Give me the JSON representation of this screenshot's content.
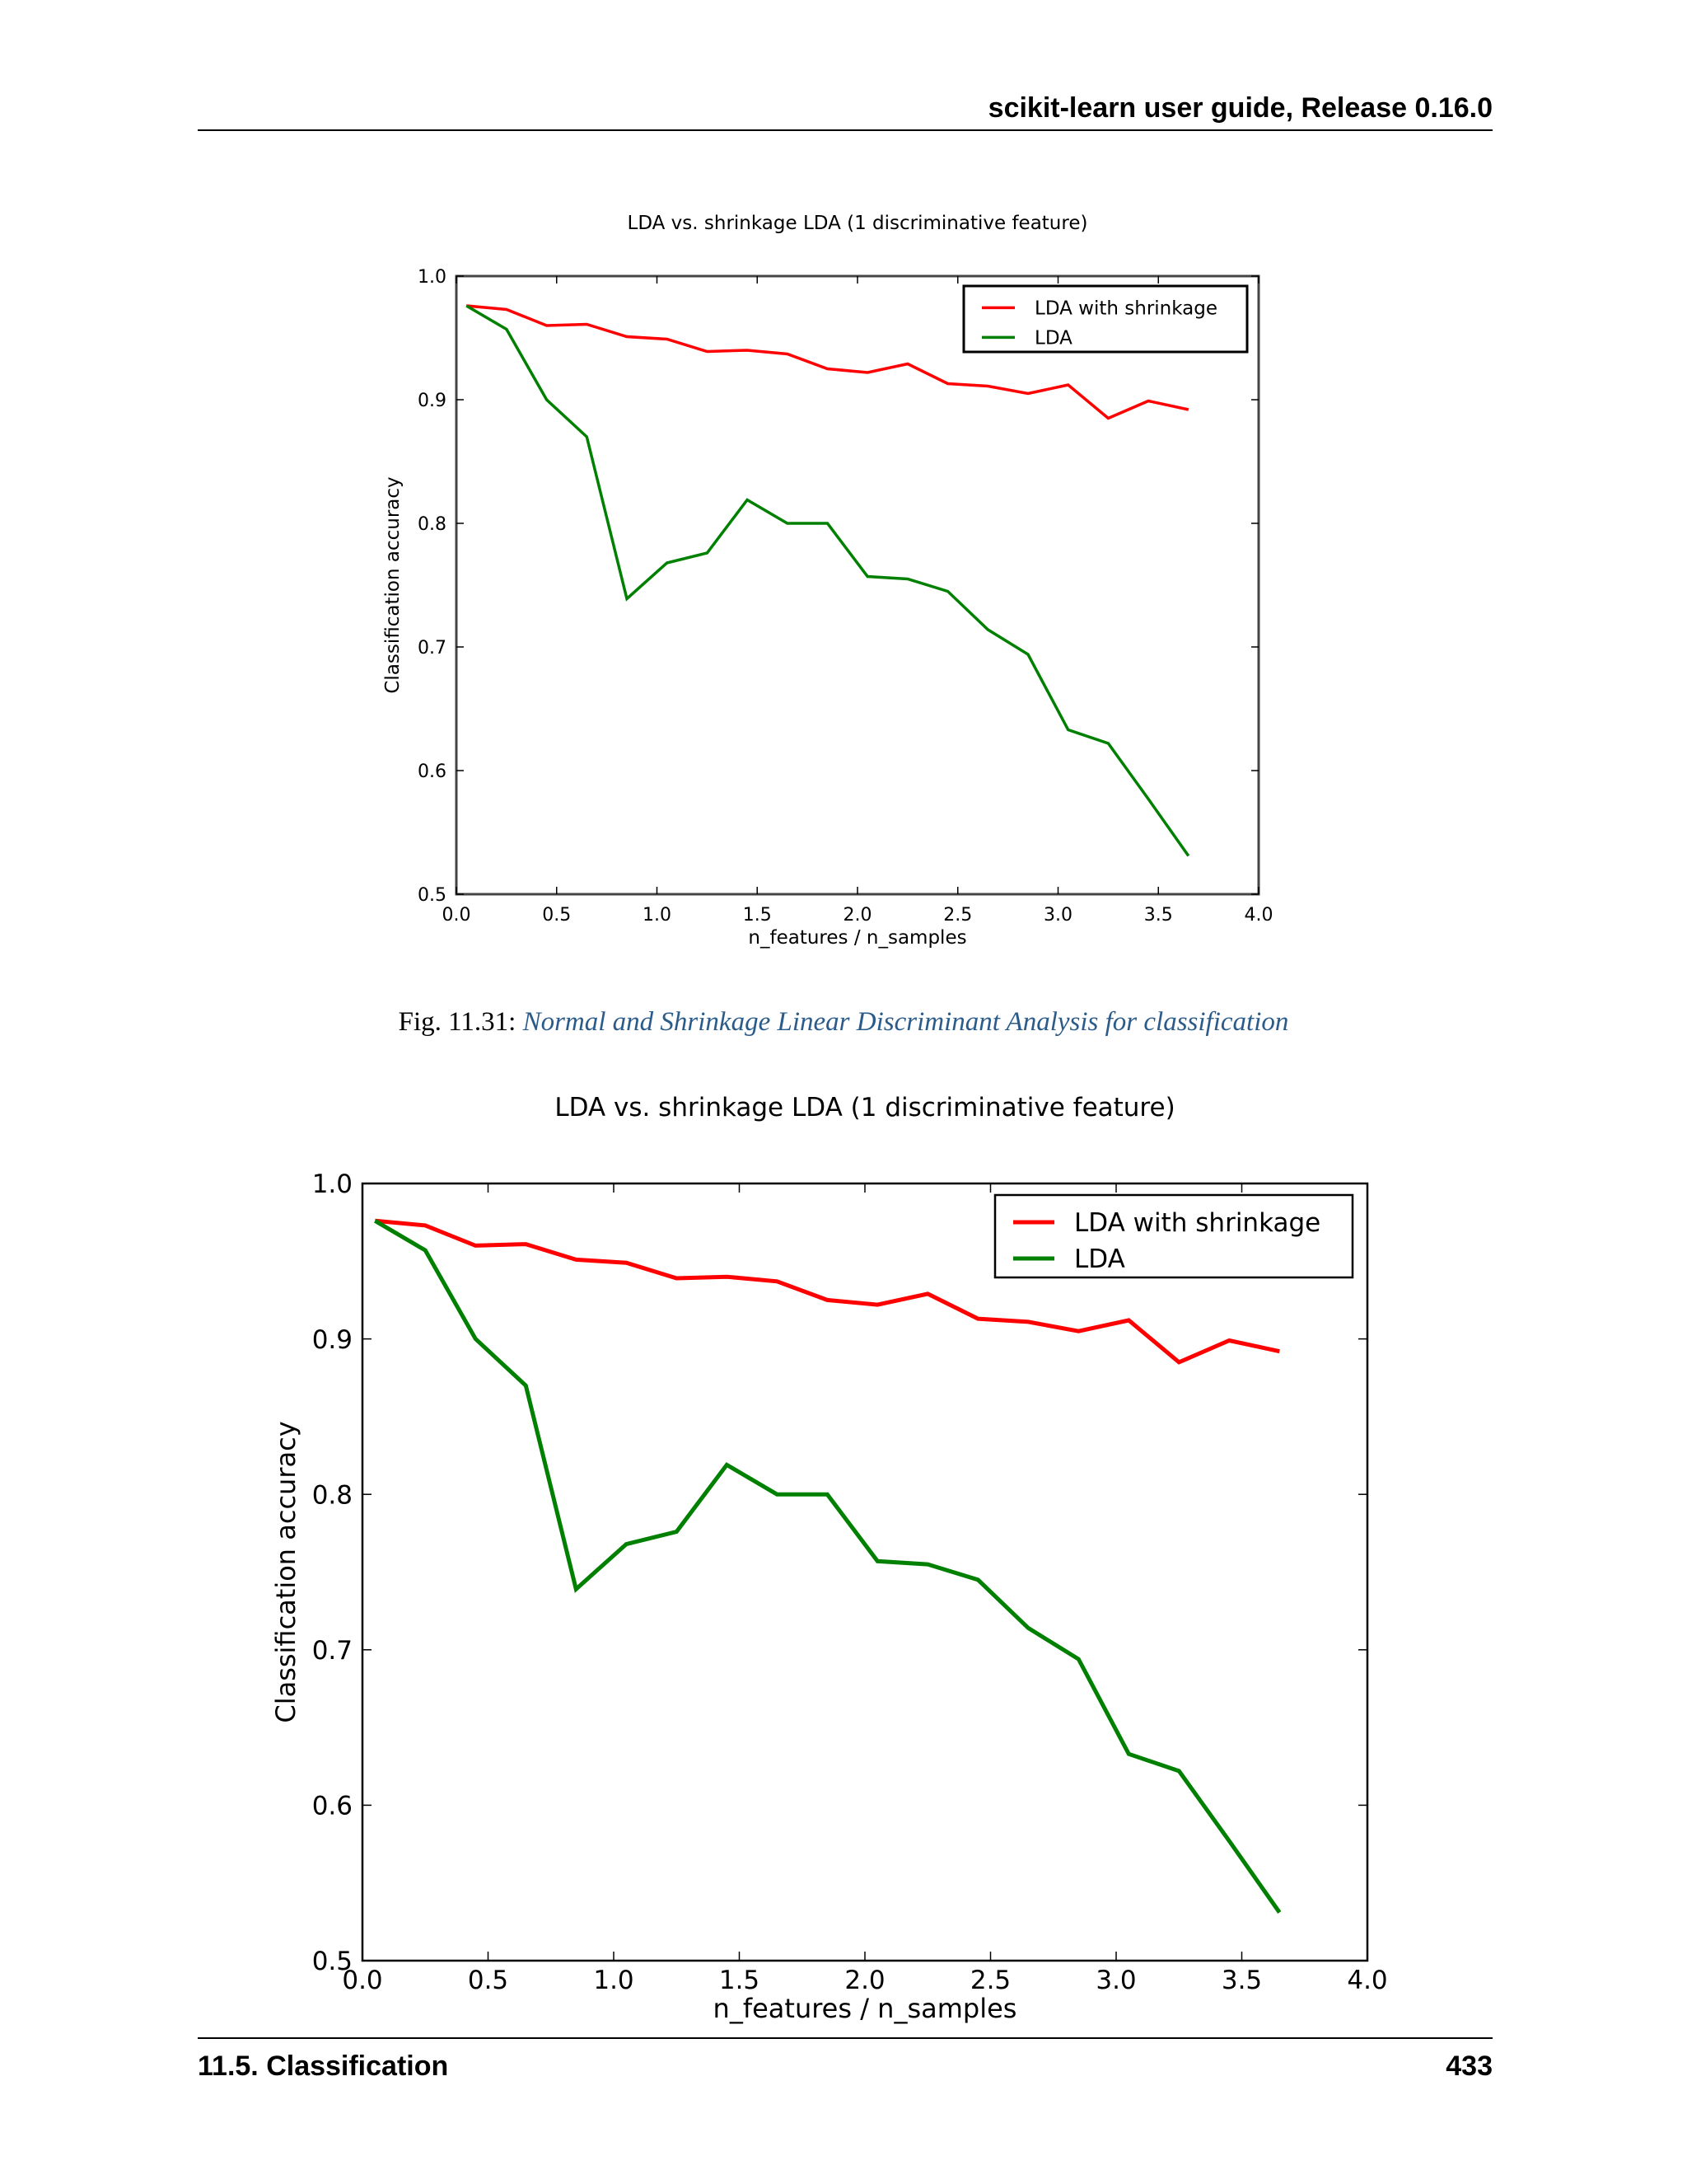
{
  "header": {
    "title": "scikit-learn user guide, Release 0.16.0"
  },
  "figure_caption": {
    "label": "Fig. 11.31:",
    "link_text": "Normal and Shrinkage Linear Discriminant Analysis for classification"
  },
  "footer": {
    "section": "11.5. Classification",
    "page_number": "433"
  },
  "colors": {
    "shrinkage": "#ff0000",
    "lda": "#008000",
    "link": "#2a5b8a"
  },
  "chart_data": [
    {
      "type": "line",
      "title": "LDA vs. shrinkage LDA (1 discriminative feature)",
      "xlabel": "n_features / n_samples",
      "ylabel": "Classification accuracy",
      "xlim": [
        0.0,
        4.0
      ],
      "ylim": [
        0.5,
        1.0
      ],
      "xticks": [
        "0.0",
        "0.5",
        "1.0",
        "1.5",
        "2.0",
        "2.5",
        "3.0",
        "3.5",
        "4.0"
      ],
      "yticks": [
        "0.5",
        "0.6",
        "0.7",
        "0.8",
        "0.9",
        "1.0"
      ],
      "legend_position": "top-right",
      "x": [
        0.05,
        0.25,
        0.45,
        0.65,
        0.85,
        1.05,
        1.25,
        1.45,
        1.65,
        1.85,
        2.05,
        2.25,
        2.45,
        2.65,
        2.85,
        3.05,
        3.25,
        3.45,
        3.65
      ],
      "series": [
        {
          "name": "LDA with shrinkage",
          "color": "#ff0000",
          "values": [
            0.976,
            0.973,
            0.96,
            0.961,
            0.951,
            0.949,
            0.939,
            0.94,
            0.937,
            0.925,
            0.922,
            0.929,
            0.913,
            0.911,
            0.905,
            0.912,
            0.885,
            0.899,
            0.892
          ]
        },
        {
          "name": "LDA",
          "color": "#008000",
          "values": [
            0.976,
            0.957,
            0.9,
            0.87,
            0.739,
            0.768,
            0.776,
            0.819,
            0.8,
            0.8,
            0.757,
            0.755,
            0.745,
            0.714,
            0.694,
            0.633,
            0.622,
            0.577,
            0.531
          ]
        }
      ]
    },
    {
      "type": "line",
      "title": "LDA vs. shrinkage LDA (1 discriminative feature)",
      "xlabel": "n_features / n_samples",
      "ylabel": "Classification accuracy",
      "xlim": [
        0.0,
        4.0
      ],
      "ylim": [
        0.5,
        1.0
      ],
      "xticks": [
        "0.0",
        "0.5",
        "1.0",
        "1.5",
        "2.0",
        "2.5",
        "3.0",
        "3.5",
        "4.0"
      ],
      "yticks": [
        "0.5",
        "0.6",
        "0.7",
        "0.8",
        "0.9",
        "1.0"
      ],
      "legend_position": "top-right",
      "x": [
        0.05,
        0.25,
        0.45,
        0.65,
        0.85,
        1.05,
        1.25,
        1.45,
        1.65,
        1.85,
        2.05,
        2.25,
        2.45,
        2.65,
        2.85,
        3.05,
        3.25,
        3.45,
        3.65
      ],
      "series": [
        {
          "name": "LDA with shrinkage",
          "color": "#ff0000",
          "values": [
            0.976,
            0.973,
            0.96,
            0.961,
            0.951,
            0.949,
            0.939,
            0.94,
            0.937,
            0.925,
            0.922,
            0.929,
            0.913,
            0.911,
            0.905,
            0.912,
            0.885,
            0.899,
            0.892
          ]
        },
        {
          "name": "LDA",
          "color": "#008000",
          "values": [
            0.976,
            0.957,
            0.9,
            0.87,
            0.739,
            0.768,
            0.776,
            0.819,
            0.8,
            0.8,
            0.757,
            0.755,
            0.745,
            0.714,
            0.694,
            0.633,
            0.622,
            0.577,
            0.531
          ]
        }
      ]
    }
  ]
}
